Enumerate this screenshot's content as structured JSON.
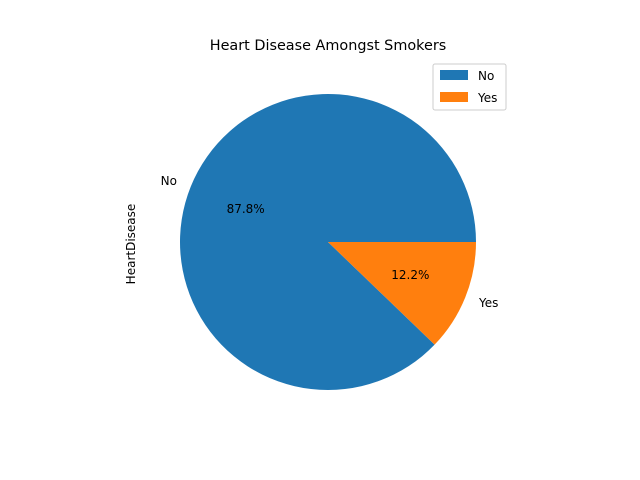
{
  "chart_data": {
    "type": "pie",
    "title": "Heart Disease Amongst Smokers",
    "ylabel": "HeartDisease",
    "legend_position": "top-right",
    "slices": [
      {
        "label": "No",
        "value": 87.8,
        "percent_label": "87.8%",
        "color": "#1f77b4"
      },
      {
        "label": "Yes",
        "value": 12.2,
        "percent_label": "12.2%",
        "color": "#ff7f0e"
      }
    ]
  }
}
